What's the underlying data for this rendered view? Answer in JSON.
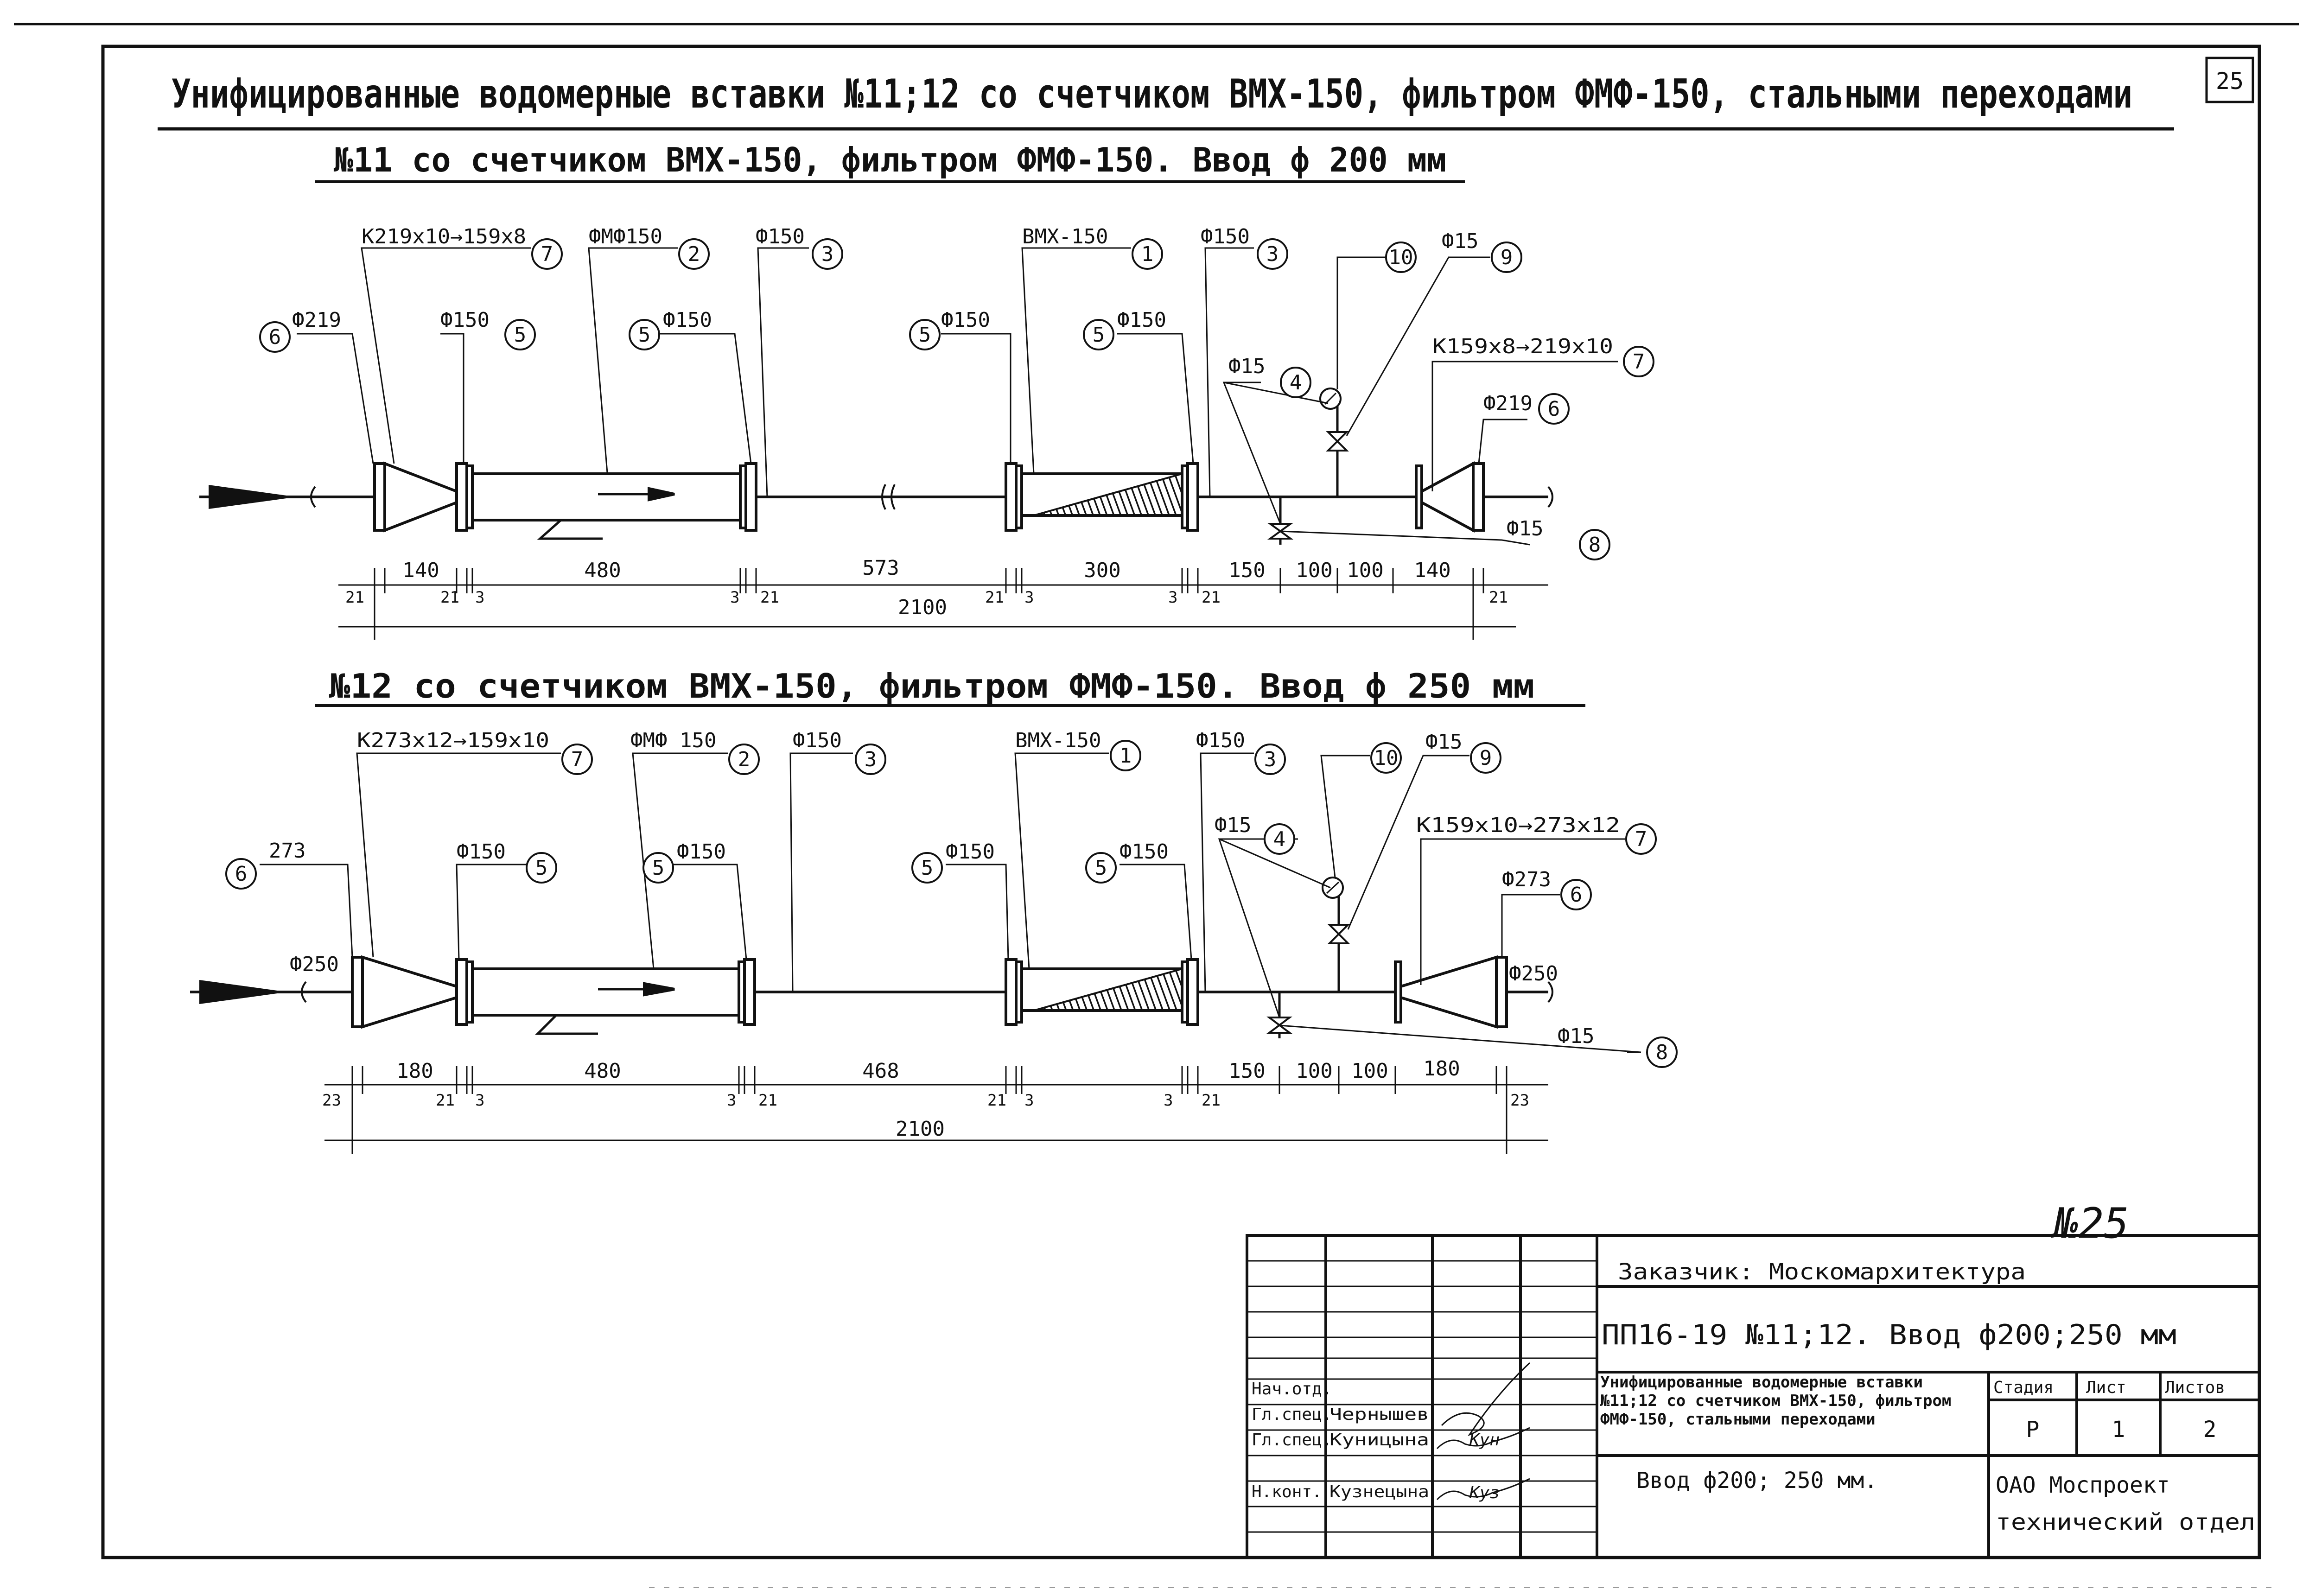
{
  "sheet_number": "25",
  "title": "Унифицированные водомерные вставки №11;12 со счетчиком ВМХ-150, фильтром ФМФ-150, стальными переходами",
  "insert11": {
    "heading": "№11 со счетчиком ВМХ-150, фильтром ФМФ-150. Ввод ф 200 мм",
    "labels": {
      "l6_left": "Ф219",
      "n6_left": "6",
      "l7_left": "К219x10→159x8",
      "n7_left": "7",
      "l5_a": "Ф150",
      "n5_a": "5",
      "l2": "ФМФ150",
      "n2": "2",
      "l5_b": "Ф150",
      "n5_b": "5",
      "l3_a": "Ф150",
      "n3_a": "3",
      "l5_c": "Ф150",
      "n5_c": "5",
      "l1": "ВМХ-150",
      "n1": "1",
      "l5_d": "Ф150",
      "n5_d": "5",
      "l3_b": "Ф150",
      "n3_b": "3",
      "l4": "Ф15",
      "n4": "4",
      "n10": "10",
      "l9": "Ф15",
      "n9": "9",
      "l7_right": "К159x8→219x10",
      "n7_right": "7",
      "l6_right": "Ф219",
      "n6_right": "6",
      "l8": "Ф15",
      "n8": "8"
    },
    "dims": {
      "d140": "140",
      "d480": "480",
      "d573": "573",
      "d300": "300",
      "d150": "150",
      "d100a": "100",
      "d100b": "100",
      "d140b": "140",
      "total": "2100",
      "s21a": "21",
      "s21b": "21",
      "s3a": "3",
      "s3b": "3",
      "s21c": "21",
      "s21d": "21",
      "s3c": "3",
      "s3d": "3",
      "s21e": "21",
      "s21f": "21"
    }
  },
  "insert12": {
    "heading": "№12 со счетчиком ВМХ-150, фильтром ФМФ-150. Ввод ф 250 мм",
    "labels": {
      "l6_left": "273",
      "n6_left": "6",
      "l250_left": "Ф250",
      "l7_left": "К273x12→159x10",
      "n7_left": "7",
      "l5_a": "Ф150",
      "n5_a": "5",
      "l2": "ФМФ 150",
      "n2": "2",
      "l5_b": "Ф150",
      "n5_b": "5",
      "l3_a": "Ф150",
      "n3_a": "3",
      "l5_c": "Ф150",
      "n5_c": "5",
      "l1": "ВМХ-150",
      "n1": "1",
      "l5_d": "Ф150",
      "n5_d": "5",
      "l3_b": "Ф150",
      "n3_b": "3",
      "l4": "Ф15",
      "n4": "4",
      "n10": "10",
      "l9": "Ф15",
      "n9": "9",
      "l7_right": "К159x10→273x12",
      "n7_right": "7",
      "l6_right": "Ф273",
      "n6_right": "6",
      "l250_right": "Ф250",
      "l8": "Ф15",
      "n8": "8"
    },
    "dims": {
      "d180": "180",
      "d480": "480",
      "d468": "468",
      "d150": "150",
      "d100a": "100",
      "d100b": "100",
      "d180b": "180",
      "total": "2100",
      "s23a": "23",
      "s21a": "21",
      "s3a": "3",
      "s3b": "3",
      "s21b": "21",
      "s21c": "21",
      "s3c": "3",
      "s3d": "3",
      "s21d": "21",
      "s23b": "23"
    }
  },
  "title_block": {
    "page_mark": "№25",
    "customer": "Заказчик: Москомархитектура",
    "code": "ПП16-19 №11;12. Ввод ф200;250 мм",
    "description": "Унифицированные водомерные вставки №11;12 со счетчиком ВМХ-150, фильтром ФМФ-150, стальными переходами",
    "subtitle": "Ввод ф200; 250 мм.",
    "org_line1": "ОАО Моспроект",
    "org_line2": "технический отдел",
    "stage_header": "Стадия",
    "sheet_header": "Лист",
    "sheets_header": "Листов",
    "stage": "Р",
    "sheet": "1",
    "sheets": "2",
    "roles": [
      "Нач.отд.",
      "Гл.спец.",
      "Гл.спец.",
      "Н.конт."
    ],
    "names": [
      "",
      "Чернышев",
      "Куницына",
      "Кузнецына"
    ],
    "signatures": [
      "",
      "",
      "Кун",
      "Куз"
    ]
  }
}
